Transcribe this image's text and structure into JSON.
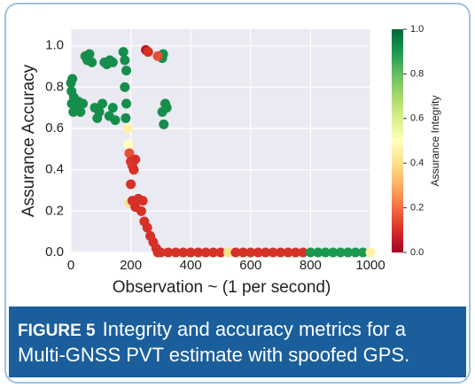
{
  "chart_data": {
    "type": "scatter",
    "xlabel": "Observation ~ (1 per second)",
    "ylabel": "Assurance Accuracy",
    "colorbar_label": "Assurance Integrity",
    "colormap": [
      "#a50026",
      "#d73027",
      "#f46d43",
      "#fdae61",
      "#fee08b",
      "#ffffbf",
      "#d9ef8b",
      "#a6d96a",
      "#66bd63",
      "#1a9850",
      "#006837"
    ],
    "background": "#eaeaf2",
    "grid": true,
    "xlim": [
      0,
      1000
    ],
    "ylim": [
      0,
      1.08
    ],
    "clim": [
      0,
      1
    ],
    "xticks": [
      0,
      200,
      400,
      600,
      800,
      1000
    ],
    "yticks": [
      {
        "value": 0,
        "label": "0.0"
      },
      {
        "value": 0.2,
        "label": "0.2"
      },
      {
        "value": 0.4,
        "label": "0.4"
      },
      {
        "value": 0.6,
        "label": "0.6"
      },
      {
        "value": 0.8,
        "label": "0.8"
      },
      {
        "value": 1,
        "label": "1.0"
      }
    ],
    "cticks": [
      {
        "value": 0,
        "label": "0.0"
      },
      {
        "value": 0.2,
        "label": "0.2"
      },
      {
        "value": 0.4,
        "label": "0.4"
      },
      {
        "value": 0.6,
        "label": "0.6"
      },
      {
        "value": 0.8,
        "label": "0.8"
      },
      {
        "value": 1,
        "label": "1.0"
      }
    ],
    "x": [
      300,
      325,
      350,
      375,
      400,
      425,
      450,
      475,
      500,
      525,
      550,
      575,
      600,
      625,
      650,
      675,
      700,
      725,
      750,
      775,
      800,
      825,
      850,
      875,
      900,
      925,
      950,
      975,
      1000,
      0,
      2,
      3,
      5,
      8,
      10,
      18,
      25,
      32,
      40,
      48,
      55,
      62,
      70,
      80,
      88,
      95,
      105,
      112,
      120,
      130,
      140,
      128,
      140,
      148,
      175,
      180,
      185,
      180,
      185,
      183,
      305,
      310,
      315,
      320,
      308,
      305,
      190,
      192,
      195,
      200,
      205,
      210,
      215,
      200,
      195,
      205,
      215,
      225,
      235,
      240,
      245,
      255,
      265,
      275,
      285,
      290,
      250,
      258,
      290
    ],
    "y": [
      0,
      0,
      0,
      0,
      0,
      0,
      0,
      0,
      0,
      0,
      0,
      0,
      0,
      0,
      0,
      0,
      0,
      0,
      0,
      0,
      0,
      0,
      0,
      0,
      0,
      0,
      0,
      0,
      0,
      0.82,
      0.78,
      0.72,
      0.84,
      0.68,
      0.75,
      0.7,
      0.73,
      0.68,
      0.72,
      0.95,
      0.93,
      0.96,
      0.92,
      0.7,
      0.65,
      0.68,
      0.72,
      0.92,
      0.91,
      0.93,
      0.92,
      0.66,
      0.7,
      0.64,
      0.97,
      0.93,
      0.88,
      0.8,
      0.72,
      0.65,
      0.68,
      0.62,
      0.72,
      0.7,
      0.96,
      0.94,
      0.6,
      0.52,
      0.48,
      0.44,
      0.42,
      0.4,
      0.45,
      0.33,
      0.24,
      0.25,
      0.22,
      0.26,
      0.2,
      0.25,
      0.15,
      0.12,
      0.08,
      0.05,
      0.02,
      0,
      0.98,
      0.97,
      0.95
    ],
    "integrity": [
      0.1,
      0.1,
      0.1,
      0.1,
      0.1,
      0.1,
      0.1,
      0.1,
      0.1,
      0.4,
      0.1,
      0.1,
      0.1,
      0.1,
      0.1,
      0.1,
      0.1,
      0.1,
      0.1,
      0.1,
      0.9,
      0.9,
      0.9,
      0.9,
      0.9,
      0.9,
      0.9,
      0.9,
      0.45,
      0.92,
      0.92,
      0.92,
      0.92,
      0.92,
      0.92,
      0.92,
      0.92,
      0.92,
      0.92,
      0.92,
      0.92,
      0.92,
      0.92,
      0.92,
      0.92,
      0.92,
      0.92,
      0.92,
      0.92,
      0.92,
      0.92,
      0.92,
      0.92,
      0.92,
      0.92,
      0.92,
      0.92,
      0.92,
      0.92,
      0.92,
      0.92,
      0.92,
      0.92,
      0.92,
      0.92,
      0.92,
      0.45,
      0.5,
      0.15,
      0.1,
      0.12,
      0.1,
      0.1,
      0.1,
      0.4,
      0.1,
      0.1,
      0.1,
      0.1,
      0.1,
      0.1,
      0.1,
      0.1,
      0.1,
      0.1,
      0.1,
      0.05,
      0.1,
      0.15
    ]
  },
  "caption": {
    "label": "FIGURE 5",
    "lines": [
      "Integrity and accuracy metrics for a",
      "Multi-GNSS PVT estimate with spoofed GPS."
    ]
  }
}
